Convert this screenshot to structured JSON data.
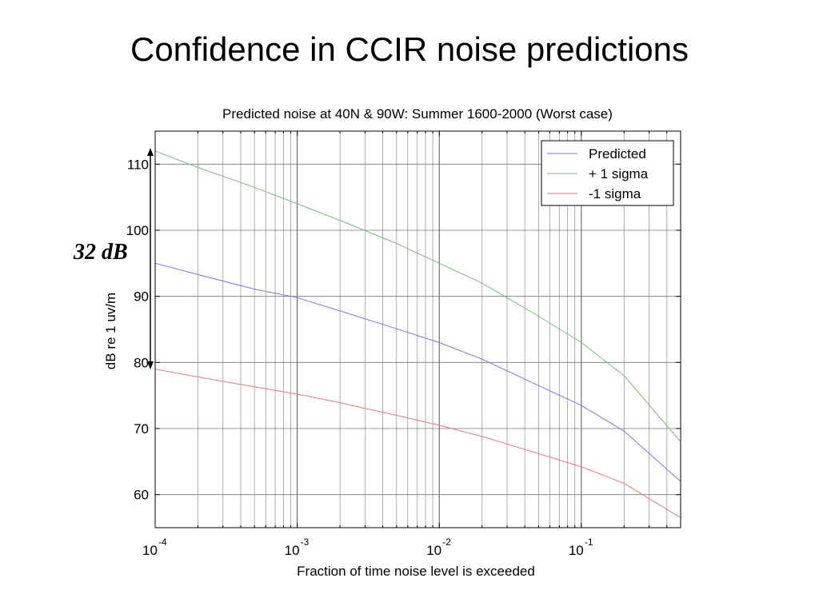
{
  "slide": {
    "title": "Confidence in CCIR noise predictions"
  },
  "annotation": {
    "label": "32 dB"
  },
  "chart_data": {
    "type": "line",
    "title": "Predicted noise at 40N & 90W: Summer 1600-2000 (Worst case)",
    "xlabel": "Fraction of time noise level is exceeded",
    "ylabel": "dB re 1 uv/m",
    "xscale": "log",
    "xlim": [
      0.0001,
      0.5
    ],
    "ylim": [
      55,
      115
    ],
    "grid": true,
    "x_tick_labels": [
      {
        "base": "10",
        "exp": "-4",
        "value": 0.0001
      },
      {
        "base": "10",
        "exp": "-3",
        "value": 0.001
      },
      {
        "base": "10",
        "exp": "-2",
        "value": 0.01
      },
      {
        "base": "10",
        "exp": "-1",
        "value": 0.1
      }
    ],
    "y_ticks": [
      60,
      70,
      80,
      90,
      100,
      110
    ],
    "legend": {
      "position": "top-right"
    },
    "series": [
      {
        "name": "Predicted",
        "color": "#7777ee",
        "x": [
          0.0001,
          0.0002,
          0.0005,
          0.001,
          0.002,
          0.005,
          0.01,
          0.02,
          0.05,
          0.1,
          0.2,
          0.5
        ],
        "y": [
          95,
          93.3,
          91.1,
          89.8,
          87.8,
          85.1,
          83,
          80.5,
          76.5,
          73.5,
          69.6,
          62
        ]
      },
      {
        "name": "+ 1 sigma",
        "color": "#77bb77",
        "x": [
          0.0001,
          0.0002,
          0.0005,
          0.001,
          0.002,
          0.005,
          0.01,
          0.02,
          0.05,
          0.1,
          0.2,
          0.5
        ],
        "y": [
          112,
          109.5,
          106.5,
          104,
          101.5,
          98,
          95,
          92,
          87,
          83,
          78,
          68
        ]
      },
      {
        "name": "-1 sigma",
        "color": "#ee7777",
        "x": [
          0.0001,
          0.0002,
          0.0005,
          0.001,
          0.002,
          0.005,
          0.01,
          0.02,
          0.05,
          0.1,
          0.2,
          0.5
        ],
        "y": [
          79,
          77.8,
          76.3,
          75.2,
          73.9,
          72,
          70.5,
          68.8,
          66.2,
          64.2,
          61.7,
          56.5
        ]
      }
    ]
  }
}
